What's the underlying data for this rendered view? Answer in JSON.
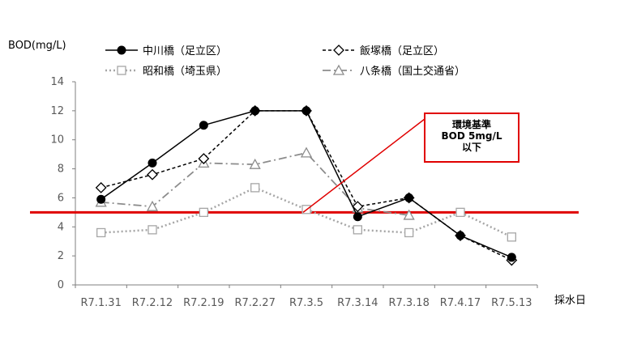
{
  "chart_data": {
    "type": "line",
    "ylabel": "BOD(mg/L)",
    "xlabel": "採水日",
    "ylim": [
      0,
      14
    ],
    "yticks": [
      0,
      2,
      4,
      6,
      8,
      10,
      12,
      14
    ],
    "grid": false,
    "legend_placement": "top",
    "categories": [
      "R7.1.31",
      "R7.2.12",
      "R7.2.19",
      "R7.2.27",
      "R7.3.5",
      "R7.3.14",
      "R7.3.18",
      "R7.4.17",
      "R7.5.13"
    ],
    "series": [
      {
        "name": "中川橋（足立区）",
        "values": [
          5.9,
          8.4,
          11.0,
          12.0,
          12.0,
          4.7,
          6.0,
          3.4,
          1.9
        ],
        "color": "#000000",
        "line_style": "solid",
        "marker": "filled-circle"
      },
      {
        "name": "飯塚橋（足立区）",
        "values": [
          6.7,
          7.6,
          8.7,
          12.0,
          12.0,
          5.4,
          6.0,
          3.4,
          1.7
        ],
        "color": "#000000",
        "line_style": "dashed",
        "marker": "open-diamond"
      },
      {
        "name": "昭和橋（埼玉県）",
        "values": [
          3.6,
          3.8,
          5.0,
          6.7,
          5.2,
          3.8,
          3.6,
          5.0,
          3.3
        ],
        "color": "#a6a6a6",
        "line_style": "dotted",
        "marker": "open-square"
      },
      {
        "name": "八条橋（国土交通省）",
        "values": [
          5.7,
          5.4,
          8.4,
          8.3,
          9.1,
          5.3,
          4.8,
          null,
          null
        ],
        "color": "#8c8c8c",
        "line_style": "dash-dot",
        "marker": "open-triangle"
      }
    ],
    "reference_line": {
      "value": 5,
      "color": "#e00000"
    },
    "annotation": {
      "lines": [
        "環境基準",
        "BOD 5mg/L",
        "以下"
      ],
      "points_to": "R7.3.5"
    }
  }
}
